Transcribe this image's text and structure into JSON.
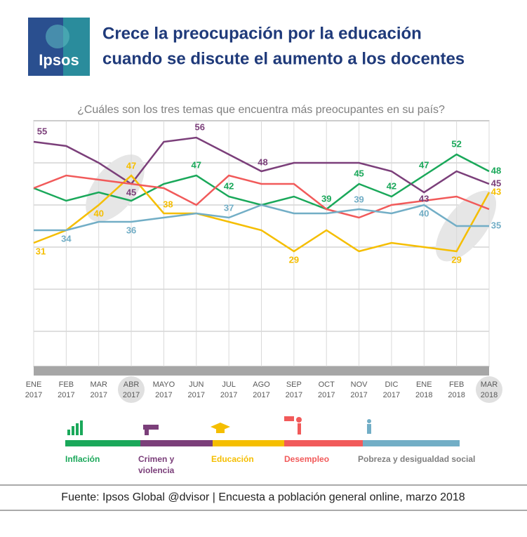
{
  "chart_data": {
    "type": "line",
    "logo": "Ipsos",
    "title": [
      "Crece la preocupación por la educación",
      "cuando se discute el aumento a los docentes"
    ],
    "subtitle": "¿Cuáles son los tres temas que encuentra más preocupantes en su país?",
    "categories": [
      [
        "ENE",
        "2017"
      ],
      [
        "FEB",
        "2017"
      ],
      [
        "MAR",
        "2017"
      ],
      [
        "ABR",
        "2017"
      ],
      [
        "MAYO",
        "2017"
      ],
      [
        "JUN",
        "2017"
      ],
      [
        "JUL",
        "2017"
      ],
      [
        "AGO",
        "2017"
      ],
      [
        "SEP",
        "2017"
      ],
      [
        "OCT",
        "2017"
      ],
      [
        "NOV",
        "2017"
      ],
      [
        "DIC",
        "2017"
      ],
      [
        "ENE",
        "2018"
      ],
      [
        "FEB",
        "2018"
      ],
      [
        "MAR",
        "2018"
      ]
    ],
    "ylim": [
      0,
      60
    ],
    "yticks": [
      10,
      20,
      30,
      40,
      50
    ],
    "grid": true,
    "series": [
      {
        "name": "Inflación",
        "color": "#1aa85a",
        "values": [
          44,
          41,
          43,
          41,
          45,
          47,
          42,
          40,
          42,
          39,
          45,
          42,
          47,
          52,
          48
        ],
        "value_labels": [
          null,
          null,
          null,
          null,
          null,
          "47",
          "42",
          null,
          null,
          "39",
          "45",
          "42",
          "47",
          "52",
          "48"
        ]
      },
      {
        "name": "Crimen y violencia",
        "color": "#7b3f7a",
        "values": [
          55,
          54,
          50,
          45,
          55,
          56,
          52,
          48,
          50,
          50,
          50,
          48,
          43,
          48,
          45
        ],
        "value_labels": [
          "55",
          null,
          null,
          "45",
          null,
          "56",
          null,
          "48",
          null,
          null,
          null,
          null,
          "43",
          null,
          "45"
        ]
      },
      {
        "name": "Educación",
        "color": "#f5be00",
        "values": [
          31,
          34,
          40,
          47,
          38,
          38,
          36,
          34,
          29,
          34,
          29,
          31,
          30,
          29,
          43
        ],
        "value_labels": [
          "31",
          null,
          "40",
          "47",
          "38",
          null,
          null,
          null,
          "29",
          null,
          null,
          null,
          null,
          "29",
          "43"
        ]
      },
      {
        "name": "Desempleo",
        "color": "#f15a5a",
        "values": [
          44,
          47,
          46,
          45,
          44,
          40,
          47,
          45,
          45,
          39,
          37,
          40,
          41,
          42,
          39
        ],
        "value_labels": [
          null,
          null,
          null,
          null,
          null,
          null,
          null,
          null,
          null,
          null,
          null,
          null,
          null,
          null,
          null
        ]
      },
      {
        "name": "Pobreza y desigualdad social",
        "color": "#72aec6",
        "values": [
          34,
          34,
          36,
          36,
          37,
          38,
          37,
          40,
          38,
          38,
          39,
          38,
          40,
          35,
          35
        ],
        "value_labels": [
          null,
          "34",
          null,
          "36",
          null,
          null,
          "37",
          null,
          null,
          null,
          "39",
          null,
          "40",
          null,
          "35"
        ]
      }
    ],
    "source": "Fuente: Ipsos Global @dvisor | Encuesta a población general online, marzo 2018"
  }
}
